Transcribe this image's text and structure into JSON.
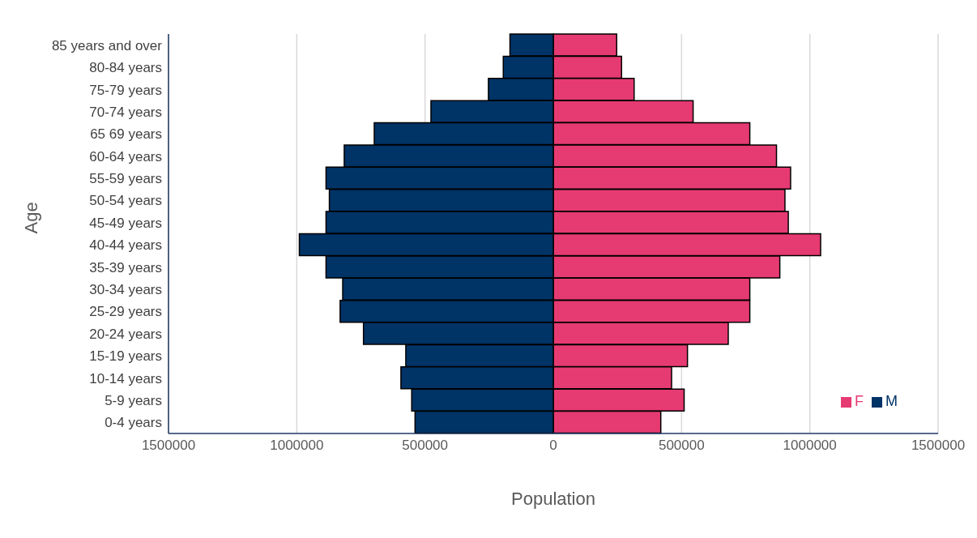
{
  "chart_data": {
    "type": "bar",
    "orientation": "horizontal",
    "stacked": true,
    "xlabel": "Population",
    "ylabel": "Age",
    "categories": [
      "85 years and over",
      "80-84 years",
      "75-79 years",
      "70-74 years",
      "65 69 years",
      "60-64 years",
      "55-59 years",
      "50-54 years",
      "45-49 years",
      "40-44 years",
      "35-39 years",
      "30-34 years",
      "25-29 years",
      "20-24 years",
      "15-19 years",
      "10-14 years",
      "5-9 years",
      "0-4 years"
    ],
    "series": [
      {
        "name": "F",
        "color": "#e63a72",
        "values": [
          247000,
          266000,
          315000,
          545000,
          766000,
          870000,
          925000,
          903000,
          916000,
          1042000,
          883000,
          766000,
          766000,
          682000,
          523000,
          461000,
          510000,
          419000
        ]
      },
      {
        "name": "M",
        "color": "#003366",
        "values": [
          -169000,
          -195000,
          -253000,
          -477000,
          -698000,
          -815000,
          -886000,
          -873000,
          -886000,
          -990000,
          -886000,
          -821000,
          -831000,
          -740000,
          -575000,
          -594000,
          -552000,
          -539000
        ]
      }
    ],
    "xlim": [
      -1500000,
      1500000
    ],
    "xticks": [
      {
        "value": -1500000,
        "label": "1500000"
      },
      {
        "value": -1000000,
        "label": "1000000"
      },
      {
        "value": -500000,
        "label": "500000"
      },
      0,
      500000,
      1000000,
      1500000
    ],
    "grid": "x",
    "legend": "bottom right"
  }
}
